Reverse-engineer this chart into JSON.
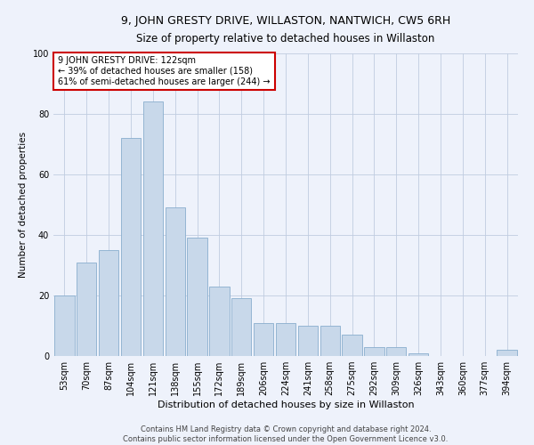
{
  "title1": "9, JOHN GRESTY DRIVE, WILLASTON, NANTWICH, CW5 6RH",
  "title2": "Size of property relative to detached houses in Willaston",
  "xlabel": "Distribution of detached houses by size in Willaston",
  "ylabel": "Number of detached properties",
  "footer1": "Contains HM Land Registry data © Crown copyright and database right 2024.",
  "footer2": "Contains public sector information licensed under the Open Government Licence v3.0.",
  "annotation_line1": "9 JOHN GRESTY DRIVE: 122sqm",
  "annotation_line2": "← 39% of detached houses are smaller (158)",
  "annotation_line3": "61% of semi-detached houses are larger (244) →",
  "bar_labels": [
    "53sqm",
    "70sqm",
    "87sqm",
    "104sqm",
    "121sqm",
    "138sqm",
    "155sqm",
    "172sqm",
    "189sqm",
    "206sqm",
    "224sqm",
    "241sqm",
    "258sqm",
    "275sqm",
    "292sqm",
    "309sqm",
    "326sqm",
    "343sqm",
    "360sqm",
    "377sqm",
    "394sqm"
  ],
  "bar_values": [
    20,
    31,
    35,
    72,
    84,
    49,
    39,
    23,
    19,
    11,
    11,
    10,
    10,
    7,
    3,
    3,
    1,
    0,
    0,
    0,
    2
  ],
  "bar_color": "#c8d8ea",
  "bar_edge_color": "#89aece",
  "annotation_box_edge_color": "#cc0000",
  "ylim": [
    0,
    100
  ],
  "yticks": [
    0,
    20,
    40,
    60,
    80,
    100
  ],
  "bg_color": "#eef2fb",
  "grid_color": "#c0cce0",
  "title1_fontsize": 9,
  "title2_fontsize": 8.5,
  "xlabel_fontsize": 8,
  "ylabel_fontsize": 7.5,
  "tick_fontsize": 7,
  "annotation_fontsize": 7,
  "footer_fontsize": 6
}
